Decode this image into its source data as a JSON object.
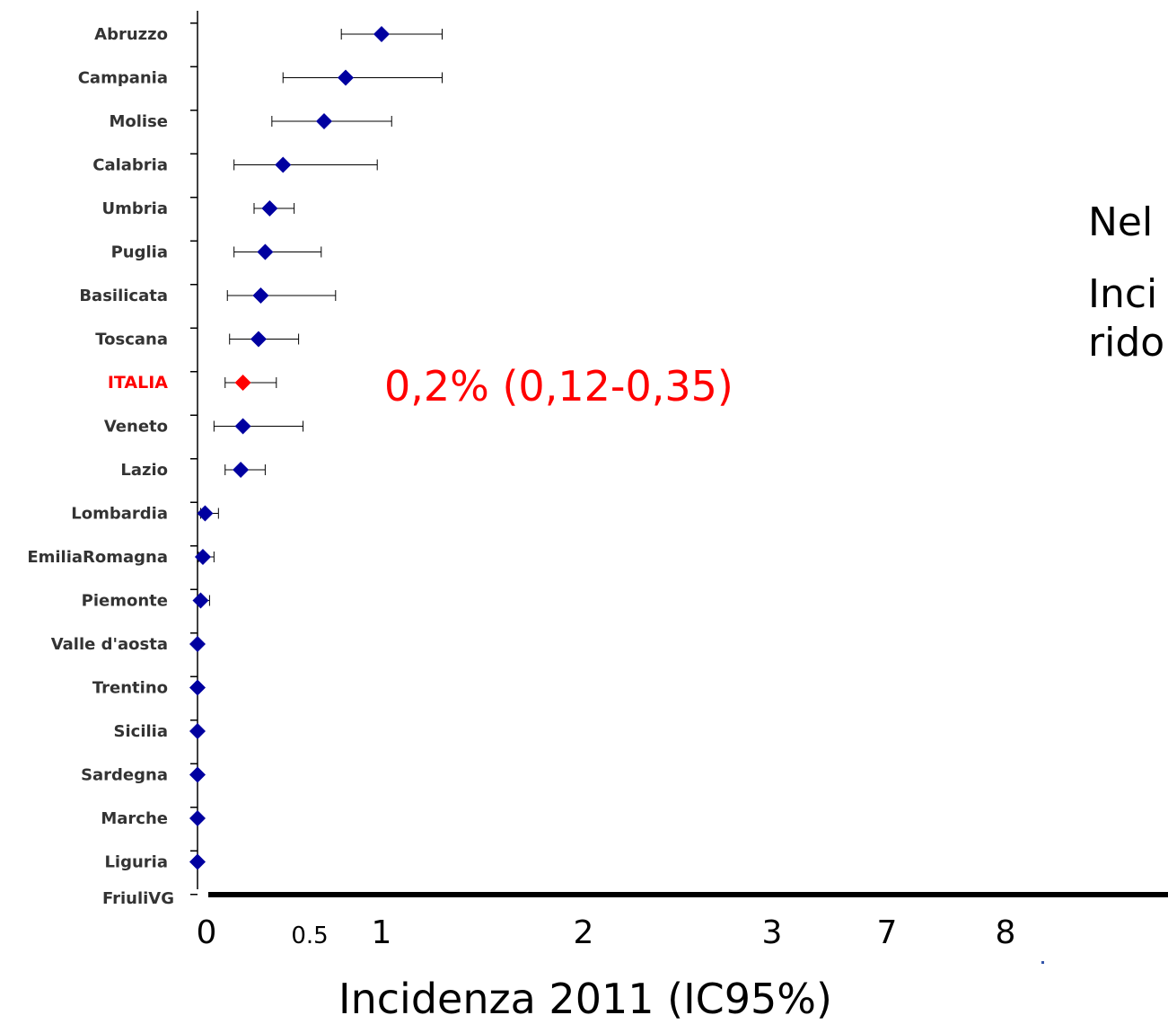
{
  "chart_data": {
    "type": "forest",
    "xlabel": "Incidenza 2011 (IC95%)",
    "x_ticks": [
      "0",
      "0.5",
      "1",
      "2",
      "3",
      "7",
      "8"
    ],
    "highlight_color": "#ff0000",
    "point_color": "#0000a0",
    "annotation": "0,2% (0,12-0,35)",
    "series": [
      {
        "region": "Abruzzo",
        "estimate": 1.0,
        "ci_low": 0.72,
        "ci_high": 1.3
      },
      {
        "region": "Campania",
        "estimate": 0.75,
        "ci_low": 0.38,
        "ci_high": 1.3
      },
      {
        "region": "Molise",
        "estimate": 0.6,
        "ci_low": 0.33,
        "ci_high": 1.05
      },
      {
        "region": "Calabria",
        "estimate": 0.38,
        "ci_low": 0.16,
        "ci_high": 0.97
      },
      {
        "region": "Umbria",
        "estimate": 0.32,
        "ci_low": 0.25,
        "ci_high": 0.43
      },
      {
        "region": "Puglia",
        "estimate": 0.3,
        "ci_low": 0.16,
        "ci_high": 0.58
      },
      {
        "region": "Basilicata",
        "estimate": 0.28,
        "ci_low": 0.13,
        "ci_high": 0.68
      },
      {
        "region": "Toscana",
        "estimate": 0.27,
        "ci_low": 0.14,
        "ci_high": 0.45
      },
      {
        "region": "ITALIA",
        "estimate": 0.2,
        "ci_low": 0.12,
        "ci_high": 0.35,
        "highlight": true
      },
      {
        "region": "Veneto",
        "estimate": 0.2,
        "ci_low": 0.07,
        "ci_high": 0.47
      },
      {
        "region": "Lazio",
        "estimate": 0.19,
        "ci_low": 0.12,
        "ci_high": 0.3
      },
      {
        "region": "Lombardia",
        "estimate": 0.03,
        "ci_low": 0.01,
        "ci_high": 0.09
      },
      {
        "region": "EmiliaRomagna",
        "estimate": 0.02,
        "ci_low": 0.0,
        "ci_high": 0.07
      },
      {
        "region": "Piemonte",
        "estimate": 0.01,
        "ci_low": 0.0,
        "ci_high": 0.05
      },
      {
        "region": "Valle d'aosta",
        "estimate": 0.0
      },
      {
        "region": "Trentino",
        "estimate": 0.0
      },
      {
        "region": "Sicilia",
        "estimate": 0.0
      },
      {
        "region": "Sardegna",
        "estimate": 0.0
      },
      {
        "region": "Marche",
        "estimate": 0.0
      },
      {
        "region": "Liguria",
        "estimate": 0.0
      },
      {
        "region": "FriuliVG",
        "estimate": null
      }
    ]
  },
  "side_text": {
    "line1": "Nel",
    "line2": "Inci",
    "line3": "rido"
  }
}
